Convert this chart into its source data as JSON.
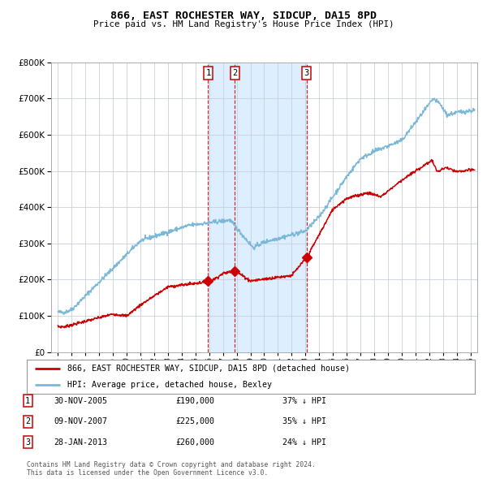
{
  "title": "866, EAST ROCHESTER WAY, SIDCUP, DA15 8PD",
  "subtitle": "Price paid vs. HM Land Registry's House Price Index (HPI)",
  "footer": "Contains HM Land Registry data © Crown copyright and database right 2024.\nThis data is licensed under the Open Government Licence v3.0.",
  "legend_line1": "866, EAST ROCHESTER WAY, SIDCUP, DA15 8PD (detached house)",
  "legend_line2": "HPI: Average price, detached house, Bexley",
  "transactions": [
    {
      "num": 1,
      "date": "30-NOV-2005",
      "price": 190000,
      "pct": "37%",
      "dir": "↓",
      "x_year": 2005.92
    },
    {
      "num": 2,
      "date": "09-NOV-2007",
      "price": 225000,
      "pct": "35%",
      "dir": "↓",
      "x_year": 2007.86
    },
    {
      "num": 3,
      "date": "28-JAN-2013",
      "price": 260000,
      "pct": "24%",
      "dir": "↓",
      "x_year": 2013.08
    }
  ],
  "hpi_color": "#7ab8d9",
  "property_color": "#cc0000",
  "dashed_color": "#cc0000",
  "bg_shade_color": "#ddeeff",
  "grid_color": "#c8d0dc",
  "background_color": "#ffffff",
  "ylim": [
    0,
    800000
  ],
  "yticks": [
    0,
    100000,
    200000,
    300000,
    400000,
    500000,
    600000,
    700000,
    800000
  ],
  "xlim_start": 1994.5,
  "xlim_end": 2025.5
}
